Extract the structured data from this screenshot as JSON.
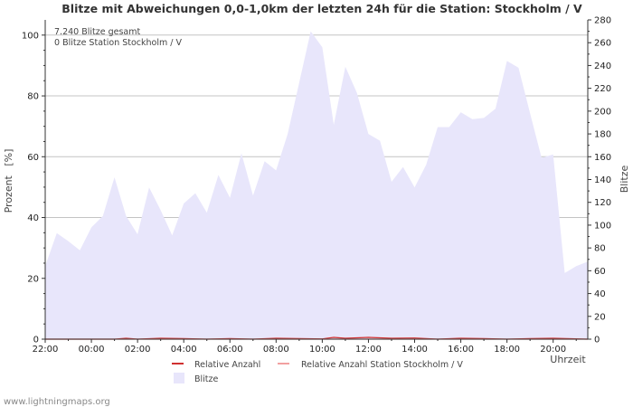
{
  "chart_data": {
    "type": "area",
    "title": "Blitze mit Abweichungen 0,0-1,0km der letzten 24h für die Station: Stockholm / V",
    "info_lines": [
      "7.240 Blitze gesamt",
      "0 Blitze Station Stockholm / V"
    ],
    "ylabel_left": "Prozent   [%]",
    "ylabel_right": "Blitze",
    "xlabel": "Uhrzeit",
    "x_tick_labels": [
      "22:00",
      "00:00",
      "02:00",
      "04:00",
      "06:00",
      "08:00",
      "10:00",
      "12:00",
      "14:00",
      "16:00",
      "18:00",
      "20:00"
    ],
    "left_axis": {
      "min": 0,
      "max": 105,
      "ticks": [
        0,
        20,
        40,
        60,
        80,
        100
      ]
    },
    "right_axis": {
      "min": 0,
      "max": 280,
      "ticks": [
        0,
        20,
        40,
        60,
        80,
        100,
        120,
        140,
        160,
        180,
        200,
        220,
        240,
        260,
        280
      ]
    },
    "hours_span": 23.5,
    "series": [
      {
        "name": "Blitze",
        "axis": "right",
        "color": "#e8e6fb",
        "x_hours": [
          0,
          0.5,
          1,
          1.5,
          2,
          2.5,
          3,
          3.5,
          4,
          4.5,
          5,
          5.5,
          6,
          6.5,
          7,
          7.5,
          8,
          8.5,
          9,
          9.5,
          10,
          10.5,
          11,
          11.5,
          12,
          12.5,
          13,
          13.5,
          14,
          14.5,
          15,
          15.5,
          16,
          16.5,
          17,
          17.5,
          18,
          18.5,
          19,
          19.5,
          20,
          20.5,
          21,
          21.5,
          22,
          22.5,
          23,
          23.5
        ],
        "values": [
          64,
          93,
          86,
          78,
          98,
          108,
          142,
          108,
          92,
          133,
          113,
          91,
          119,
          128,
          111,
          144,
          124,
          163,
          126,
          156,
          148,
          180,
          225,
          270,
          256,
          188,
          239,
          216,
          180,
          174,
          138,
          151,
          133,
          153,
          186,
          186,
          199,
          193,
          194,
          202,
          244,
          238,
          198,
          159,
          162,
          58,
          64,
          68
        ]
      },
      {
        "name": "Relative Anzahl",
        "axis": "left",
        "color": "#d03030",
        "x_hours": [
          0,
          1,
          2,
          3,
          3.5,
          4,
          5,
          6,
          7,
          8,
          9,
          10,
          11,
          12,
          12.5,
          13,
          14,
          15,
          16,
          17,
          18,
          19,
          20,
          21,
          22,
          23.5
        ],
        "values": [
          0,
          0,
          0,
          0,
          0.3,
          0,
          0.3,
          0.2,
          0,
          0.2,
          0,
          0.3,
          0.2,
          0.1,
          0.6,
          0.3,
          0.6,
          0.3,
          0.4,
          0,
          0.3,
          0.2,
          0,
          0.2,
          0.3,
          0
        ]
      },
      {
        "name": "Relative Anzahl Station Stockholm / V",
        "axis": "left",
        "color": "#f2a0a0",
        "x_hours": [
          0,
          23.5
        ],
        "values": [
          0,
          0
        ]
      }
    ],
    "legend": [
      "Relative Anzahl",
      "Relative Anzahl Station Stockholm / V",
      "Blitze"
    ],
    "grid": true
  },
  "footer": {
    "source": "www.lightningmaps.org"
  }
}
